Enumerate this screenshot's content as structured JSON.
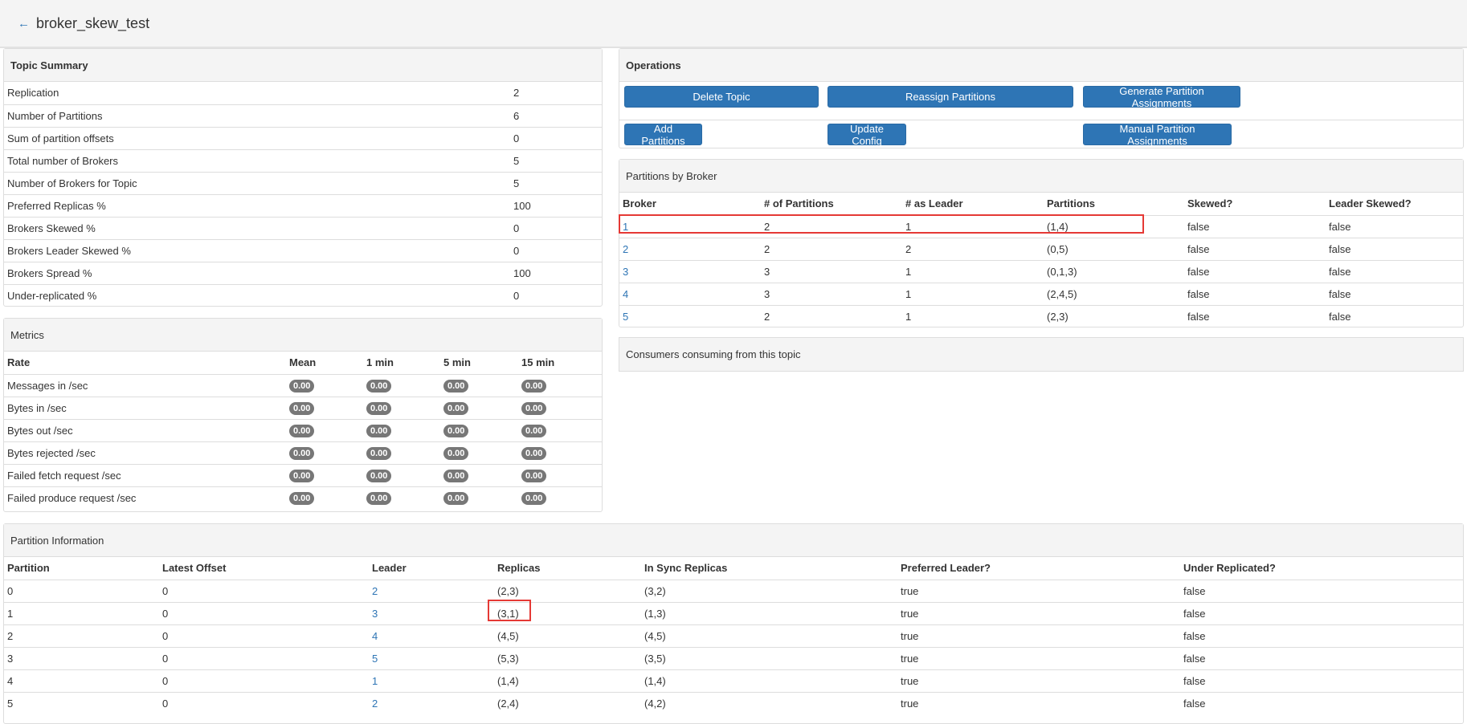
{
  "header": {
    "back_icon": "arrow-left-icon",
    "title": "broker_skew_test"
  },
  "topic_summary": {
    "title": "Topic Summary",
    "rows": [
      {
        "label": "Replication",
        "value": "2"
      },
      {
        "label": "Number of Partitions",
        "value": "6"
      },
      {
        "label": "Sum of partition offsets",
        "value": "0"
      },
      {
        "label": "Total number of Brokers",
        "value": "5"
      },
      {
        "label": "Number of Brokers for Topic",
        "value": "5"
      },
      {
        "label": "Preferred Replicas %",
        "value": "100"
      },
      {
        "label": "Brokers Skewed %",
        "value": "0"
      },
      {
        "label": "Brokers Leader Skewed %",
        "value": "0"
      },
      {
        "label": "Brokers Spread %",
        "value": "100"
      },
      {
        "label": "Under-replicated %",
        "value": "0"
      }
    ]
  },
  "metrics": {
    "title": "Metrics",
    "columns": [
      "Rate",
      "Mean",
      "1 min",
      "5 min",
      "15 min"
    ],
    "rows": [
      {
        "label": "Messages in /sec",
        "values": [
          "0.00",
          "0.00",
          "0.00",
          "0.00"
        ]
      },
      {
        "label": "Bytes in /sec",
        "values": [
          "0.00",
          "0.00",
          "0.00",
          "0.00"
        ]
      },
      {
        "label": "Bytes out /sec",
        "values": [
          "0.00",
          "0.00",
          "0.00",
          "0.00"
        ]
      },
      {
        "label": "Bytes rejected /sec",
        "values": [
          "0.00",
          "0.00",
          "0.00",
          "0.00"
        ]
      },
      {
        "label": "Failed fetch request /sec",
        "values": [
          "0.00",
          "0.00",
          "0.00",
          "0.00"
        ]
      },
      {
        "label": "Failed produce request /sec",
        "values": [
          "0.00",
          "0.00",
          "0.00",
          "0.00"
        ]
      }
    ]
  },
  "operations": {
    "title": "Operations",
    "buttons": {
      "delete_topic": "Delete Topic",
      "reassign_partitions": "Reassign Partitions",
      "generate_assignments": "Generate Partition Assignments",
      "add_partitions": "Add Partitions",
      "update_config": "Update Config",
      "manual_assignments": "Manual Partition Assignments"
    }
  },
  "partitions_by_broker": {
    "title": "Partitions by Broker",
    "columns": [
      "Broker",
      "# of Partitions",
      "# as Leader",
      "Partitions",
      "Skewed?",
      "Leader Skewed?"
    ],
    "rows": [
      [
        "1",
        "2",
        "1",
        "(1,4)",
        "false",
        "false"
      ],
      [
        "2",
        "2",
        "2",
        "(0,5)",
        "false",
        "false"
      ],
      [
        "3",
        "3",
        "1",
        "(0,1,3)",
        "false",
        "false"
      ],
      [
        "4",
        "3",
        "1",
        "(2,4,5)",
        "false",
        "false"
      ],
      [
        "5",
        "2",
        "1",
        "(2,3)",
        "false",
        "false"
      ]
    ]
  },
  "consumers": {
    "title": "Consumers consuming from this topic"
  },
  "partition_info": {
    "title": "Partition Information",
    "columns": [
      "Partition",
      "Latest Offset",
      "Leader",
      "Replicas",
      "In Sync Replicas",
      "Preferred Leader?",
      "Under Replicated?"
    ],
    "rows": [
      [
        "0",
        "0",
        "2",
        "(2,3)",
        "(3,2)",
        "true",
        "false"
      ],
      [
        "1",
        "0",
        "3",
        "(3,1)",
        "(1,3)",
        "true",
        "false"
      ],
      [
        "2",
        "0",
        "4",
        "(4,5)",
        "(4,5)",
        "true",
        "false"
      ],
      [
        "3",
        "0",
        "5",
        "(5,3)",
        "(3,5)",
        "true",
        "false"
      ],
      [
        "4",
        "0",
        "1",
        "(1,4)",
        "(1,4)",
        "true",
        "false"
      ],
      [
        "5",
        "0",
        "2",
        "(2,4)",
        "(4,2)",
        "true",
        "false"
      ]
    ]
  },
  "colors": {
    "primary": "#2e75b5",
    "highlight": "#e53935",
    "badge": "#777777",
    "panel_header": "#f4f4f4"
  }
}
